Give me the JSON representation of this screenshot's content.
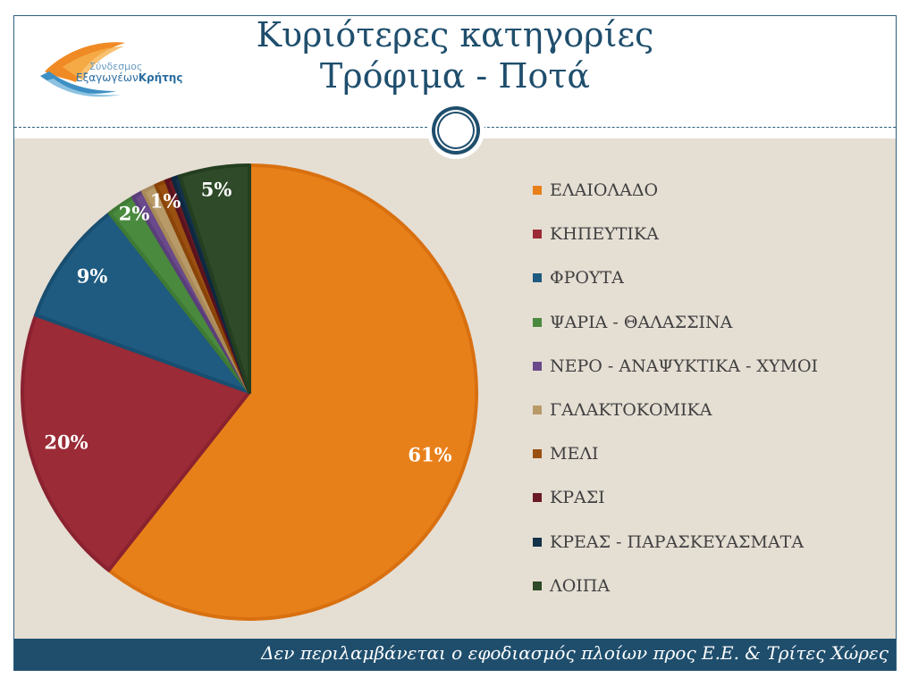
{
  "header": {
    "title_line1": "Κυριότερες κατηγορίες",
    "title_line2": "Τρόφιμα - Ποτά"
  },
  "logo": {
    "line1": "Σύνδεσμος",
    "line2_regular": "Εξαγωγέων",
    "line2_bold": "Κρήτης"
  },
  "footer": {
    "note": "Δεν περιλαμβάνεται ο εφοδιασμός πλοίων προς Ε.Ε. & Τρίτες Χώρες"
  },
  "colors": {
    "title": "#1f4e6d",
    "background": "#e5ded3",
    "footer": "#1f4e6d"
  },
  "chart_data": {
    "type": "pie",
    "legend_position": "right",
    "categories": [
      "ΕΛΑΙΟΛΑΔΟ",
      "ΚΗΠΕΥΤΙΚΑ",
      "ΦΡΟΥΤΑ",
      "ΨΑΡΙΑ - ΘΑΛΑΣΣΙΝΑ",
      "ΝΕΡΟ - ΑΝΑΨΥΚΤΙΚΑ - ΧΥΜΟΙ",
      "ΓΑΛΑΚΤΟΚΟΜΙΚΑ",
      "ΜΕΛΙ",
      "ΚΡΑΣΙ",
      "ΚΡΕΑΣ - ΠΑΡΑΣΚΕΥΑΣΜΑΤΑ",
      "ΛΟΙΠΑ"
    ],
    "values": [
      61,
      20,
      9,
      2,
      0.8,
      1,
      0.8,
      0.5,
      0.5,
      5
    ],
    "data_labels": [
      "61%",
      "20%",
      "9%",
      "2%",
      "",
      "1%",
      "",
      "",
      "",
      "5%"
    ],
    "colors": [
      "#e8801a",
      "#9b2b36",
      "#1f5a80",
      "#4a8a3e",
      "#6a4a8a",
      "#b89a68",
      "#9a5010",
      "#6a1a24",
      "#14324a",
      "#2e4a28"
    ],
    "edge_colors": [
      "#d97010",
      "#8a2230",
      "#184e70",
      "#3e7a34",
      "#5a3e7a",
      "#a88a5a",
      "#8a4408",
      "#5a121c",
      "#0e2840",
      "#243e20"
    ]
  }
}
